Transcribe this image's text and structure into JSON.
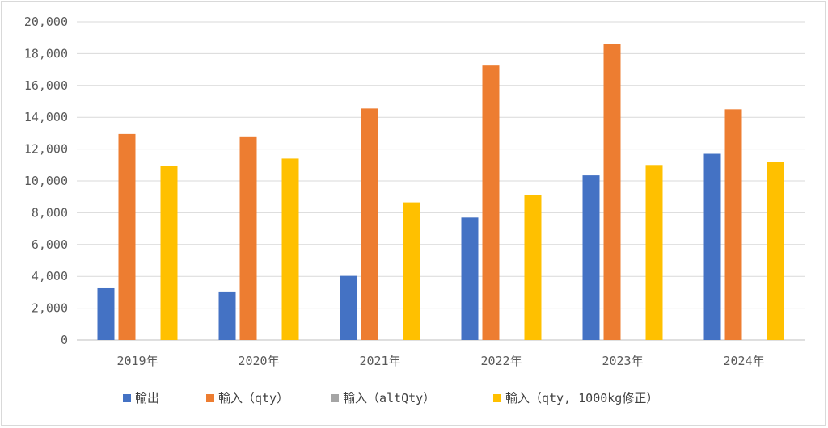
{
  "chart_data": {
    "type": "bar",
    "title": "",
    "xlabel": "",
    "ylabel": "",
    "ylim": [
      0,
      20000
    ],
    "yticks": [
      0,
      2000,
      4000,
      6000,
      8000,
      10000,
      12000,
      14000,
      16000,
      18000,
      20000
    ],
    "ytick_labels": [
      "0",
      "2,000",
      "4,000",
      "6,000",
      "8,000",
      "10,000",
      "12,000",
      "14,000",
      "16,000",
      "18,000",
      "20,000"
    ],
    "grid": true,
    "legend_position": "bottom",
    "categories": [
      "2019年",
      "2020年",
      "2021年",
      "2022年",
      "2023年",
      "2024年"
    ],
    "series": [
      {
        "name": "輸出",
        "color": "#4472C4",
        "values": [
          3250,
          3050,
          4030,
          7700,
          10350,
          11700
        ]
      },
      {
        "name": "輸入（qty）",
        "color": "#ED7D31",
        "values": [
          12950,
          12750,
          14550,
          17250,
          18600,
          14500
        ]
      },
      {
        "name": "輸入（altQty）",
        "color": "#A5A5A5",
        "values": [
          0,
          0,
          0,
          0,
          0,
          0
        ]
      },
      {
        "name": "輸入（qty, 1000kg修正）",
        "color": "#FFC000",
        "values": [
          10950,
          11400,
          8650,
          9100,
          11000,
          11180
        ]
      }
    ]
  }
}
